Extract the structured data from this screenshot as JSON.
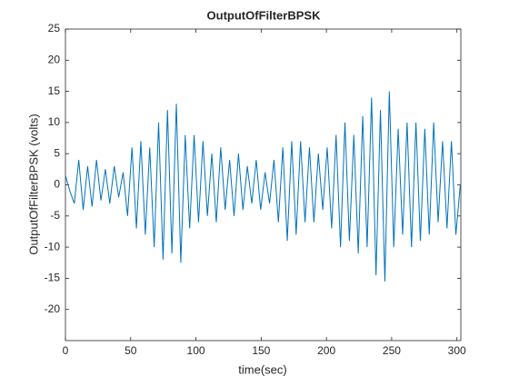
{
  "chart_data": {
    "type": "line",
    "title": "OutputOfFilterBPSK",
    "xlabel": "time(sec)",
    "ylabel": "OutputOfFilterBPSK (volts)",
    "x": [
      0,
      3.4,
      6.8,
      10.2,
      13.6,
      17,
      20.4,
      23.8,
      27.2,
      30.6,
      34,
      37.4,
      40.8,
      44.2,
      47.6,
      51,
      54.4,
      57.8,
      61.2,
      64.6,
      68,
      71.4,
      74.8,
      78.2,
      81.6,
      85,
      88.4,
      91.8,
      95.2,
      98.6,
      102,
      105.4,
      108.8,
      112.2,
      115.6,
      119,
      122.4,
      125.8,
      129.2,
      132.6,
      136,
      139.4,
      142.8,
      146.2,
      149.6,
      153,
      156.4,
      159.8,
      163.2,
      166.6,
      170,
      173.4,
      176.8,
      180.2,
      183.6,
      187,
      190.4,
      193.8,
      197.2,
      200.6,
      204,
      207.4,
      210.8,
      214.2,
      217.6,
      221,
      224.4,
      227.8,
      231.2,
      234.6,
      238,
      241.4,
      244.8,
      248.2,
      251.6,
      255,
      258.4,
      261.8,
      265.2,
      268.6,
      272,
      275.4,
      278.8,
      282.2,
      285.6,
      289,
      292.4,
      295.8,
      299.2,
      302.6
    ],
    "series": [
      {
        "name": "OutputOfFilterBPSK",
        "color": "#0072bd",
        "values": [
          1.5,
          -1,
          -3,
          4,
          -4,
          3,
          -3.5,
          4,
          -2.5,
          2.5,
          -3,
          3,
          -2,
          2,
          -5,
          6,
          -7,
          7,
          -8,
          6,
          -10,
          10,
          -12,
          12,
          -11,
          13,
          -12.5,
          8,
          -7,
          8,
          -6,
          7,
          -5,
          5,
          -6,
          6,
          -4,
          4,
          -5,
          5,
          -4,
          3,
          -3,
          4,
          -4,
          2,
          -3,
          4,
          -6,
          6,
          -9,
          7,
          -8,
          7,
          -6,
          6,
          -6,
          5,
          -4,
          6,
          -7,
          8,
          -10,
          10,
          -9,
          8,
          -11,
          11,
          -10,
          14,
          -14.5,
          12,
          -15.5,
          15,
          -10,
          9,
          -8,
          10,
          -10,
          10,
          -9,
          9,
          -8,
          10,
          -6,
          7,
          -7,
          7,
          -8,
          0
        ]
      }
    ],
    "xlim": [
      0,
      303
    ],
    "ylim": [
      -25,
      25
    ],
    "xticks": [
      0,
      50,
      100,
      150,
      200,
      250,
      300
    ],
    "yticks": [
      -20,
      -15,
      -10,
      -5,
      0,
      5,
      10,
      15,
      20,
      25
    ],
    "grid": false
  }
}
